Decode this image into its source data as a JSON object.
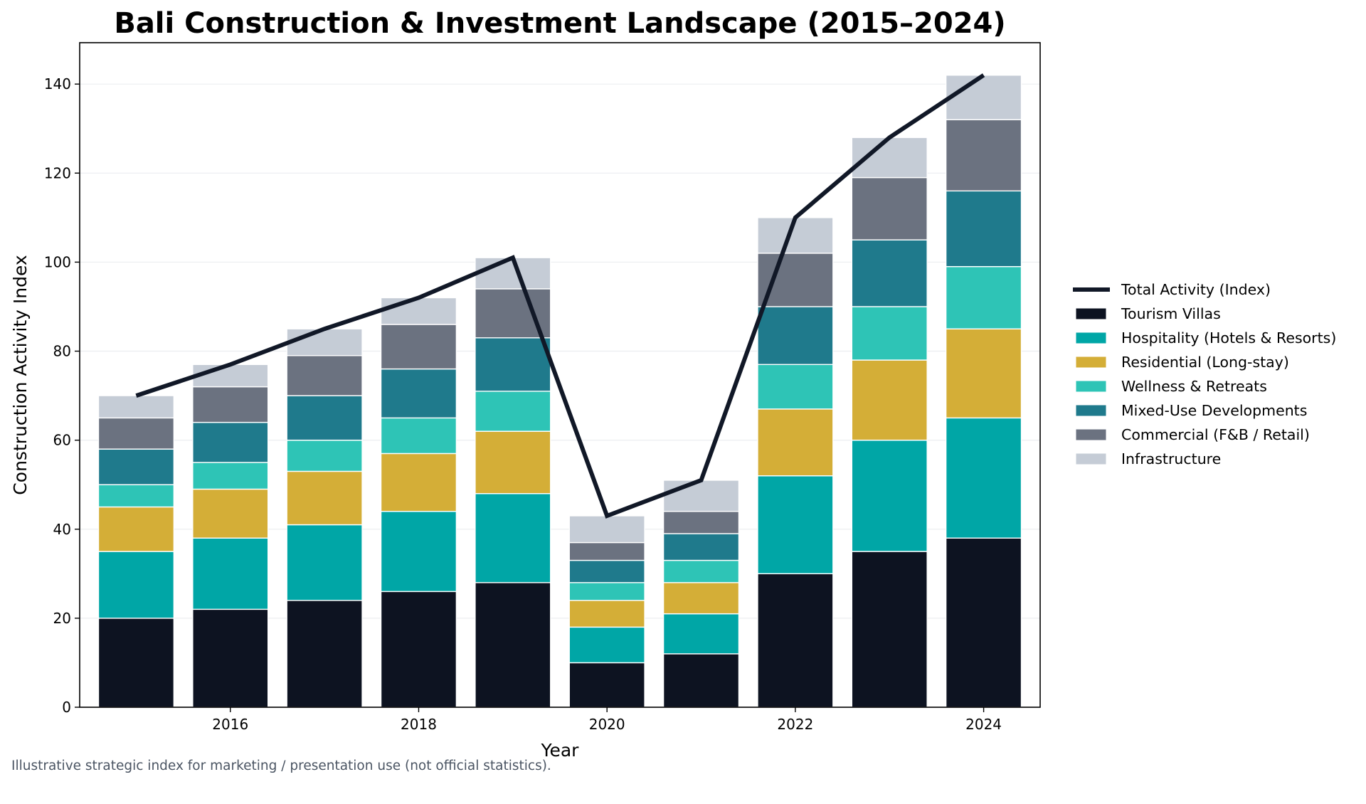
{
  "chart_data": {
    "type": "bar",
    "stacked": true,
    "title": "Bali Construction & Investment Landscape (2015–2024)",
    "xlabel": "Year",
    "ylabel": "Construction Activity Index",
    "footnote": "Illustrative strategic index for marketing / presentation use (not official statistics).",
    "x": [
      2015,
      2016,
      2017,
      2018,
      2019,
      2020,
      2021,
      2022,
      2023,
      2024
    ],
    "xticks": [
      2016,
      2018,
      2020,
      2022,
      2024
    ],
    "xtick_labels": [
      "2016",
      "2018",
      "2020",
      "2022",
      "2024"
    ],
    "yticks": [
      0,
      20,
      40,
      60,
      80,
      100,
      120,
      140
    ],
    "ytick_labels": [
      "0",
      "20",
      "40",
      "60",
      "80",
      "100",
      "120",
      "140"
    ],
    "xlim": [
      2014.4,
      2024.6
    ],
    "ylim": [
      0,
      149.3
    ],
    "grid": "y",
    "legend_position": "right",
    "series": [
      {
        "name": "Tourism Villas",
        "color": "#0d1321",
        "values": [
          20,
          22,
          24,
          26,
          28,
          10,
          12,
          30,
          35,
          38
        ]
      },
      {
        "name": "Hospitality (Hotels & Resorts)",
        "color": "#00a6a6",
        "values": [
          15,
          16,
          17,
          18,
          20,
          8,
          9,
          22,
          25,
          27
        ]
      },
      {
        "name": "Residential (Long-stay)",
        "color": "#d4ae37",
        "values": [
          10,
          11,
          12,
          13,
          14,
          6,
          7,
          15,
          18,
          20
        ]
      },
      {
        "name": "Wellness & Retreats",
        "color": "#2ec4b6",
        "values": [
          5,
          6,
          7,
          8,
          9,
          4,
          5,
          10,
          12,
          14
        ]
      },
      {
        "name": "Mixed-Use Developments",
        "color": "#1f7a8c",
        "values": [
          8,
          9,
          10,
          11,
          12,
          5,
          6,
          13,
          15,
          17
        ]
      },
      {
        "name": "Commercial (F&B / Retail)",
        "color": "#6b7280",
        "values": [
          7,
          8,
          9,
          10,
          11,
          4,
          5,
          12,
          14,
          16
        ]
      },
      {
        "name": "Infrastructure",
        "color": "#c5ccd6",
        "values": [
          5,
          5,
          6,
          6,
          7,
          6,
          7,
          8,
          9,
          10
        ]
      }
    ],
    "line": {
      "name": "Total Activity (Index)",
      "color": "#111827",
      "values": [
        70,
        77,
        85,
        92,
        101,
        43,
        51,
        110,
        128,
        142
      ]
    }
  }
}
